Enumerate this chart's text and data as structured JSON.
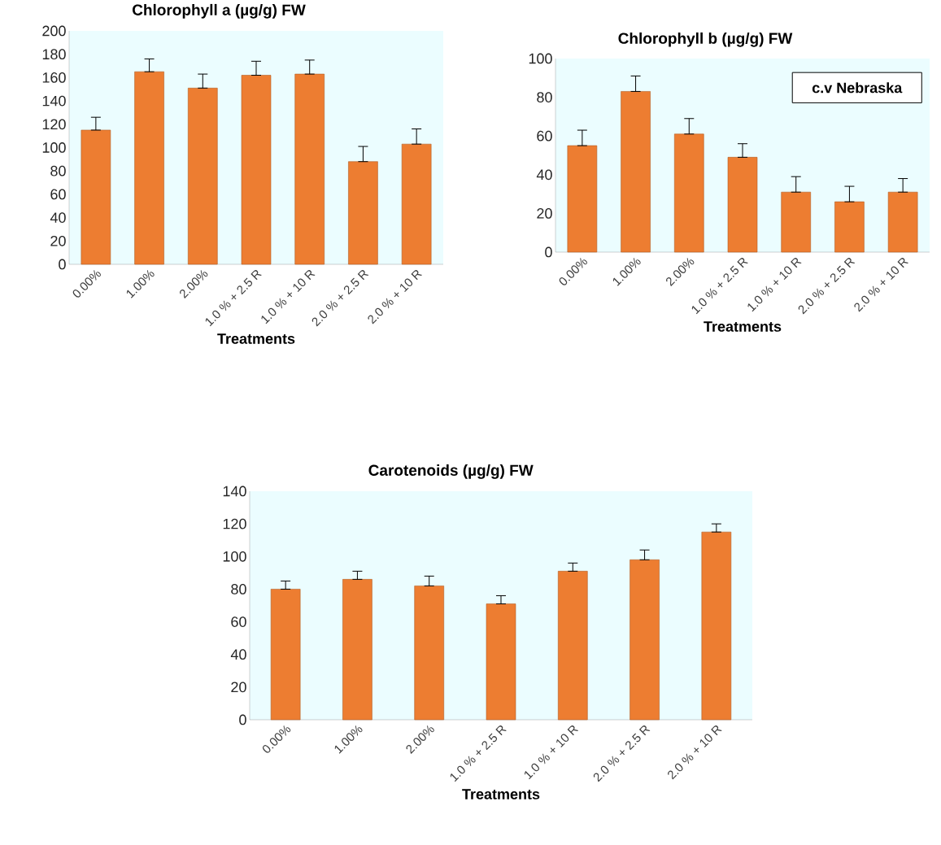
{
  "chart_data": [
    {
      "type": "bar",
      "title": "Chlorophyll a (µg/g) FW",
      "xlabel": "Treatments",
      "categories": [
        "0.00%",
        "1.00%",
        "2.00%",
        "1.0 % + 2.5 R",
        "1.0 % + 10 R",
        "2.0 % + 2.5 R",
        "2.0 % + 10 R"
      ],
      "values": [
        115,
        165,
        151,
        162,
        163,
        88,
        103
      ],
      "errors": [
        [
          115,
          126
        ],
        [
          165,
          176
        ],
        [
          151,
          163
        ],
        [
          162,
          174
        ],
        [
          163,
          175
        ],
        [
          88,
          101
        ],
        [
          103,
          116
        ]
      ],
      "color": "#ed7d31",
      "ylim": [
        0,
        200
      ],
      "yticks": [
        0,
        20,
        40,
        60,
        80,
        100,
        120,
        140,
        160,
        180,
        200
      ]
    },
    {
      "type": "bar",
      "title": "Chlorophyll b (µg/g) FW",
      "xlabel": "Treatments",
      "annotations": [
        "c.v Nebraska"
      ],
      "categories": [
        "0.00%",
        "1.00%",
        "2.00%",
        "1.0 % + 2.5 R",
        "1.0 % + 10 R",
        "2.0 % + 2.5 R",
        "2.0 % + 10 R"
      ],
      "values": [
        55,
        83,
        61,
        49,
        31,
        26,
        31
      ],
      "errors": [
        [
          55,
          63
        ],
        [
          83,
          91
        ],
        [
          61,
          69
        ],
        [
          49,
          56
        ],
        [
          31,
          39
        ],
        [
          26,
          34
        ],
        [
          31,
          38
        ]
      ],
      "color": "#ed7d31",
      "ylim": [
        0,
        100
      ],
      "yticks": [
        0,
        20,
        40,
        60,
        80,
        100
      ]
    },
    {
      "type": "bar",
      "title": "Carotenoids (µg/g) FW",
      "xlabel": "Treatments",
      "categories": [
        "0.00%",
        "1.00%",
        "2.00%",
        "1.0 % + 2.5 R",
        "1.0 % + 10 R",
        "2.0 % + 2.5 R",
        "2.0 % + 10 R"
      ],
      "values": [
        80,
        86,
        82,
        71,
        91,
        98,
        115
      ],
      "errors": [
        [
          80,
          85
        ],
        [
          86,
          91
        ],
        [
          82,
          88
        ],
        [
          71,
          76
        ],
        [
          91,
          96
        ],
        [
          98,
          104
        ],
        [
          115,
          120
        ]
      ],
      "color": "#ed7d31",
      "ylim": [
        0,
        140
      ],
      "yticks": [
        0,
        20,
        40,
        60,
        80,
        100,
        120,
        140
      ]
    }
  ]
}
